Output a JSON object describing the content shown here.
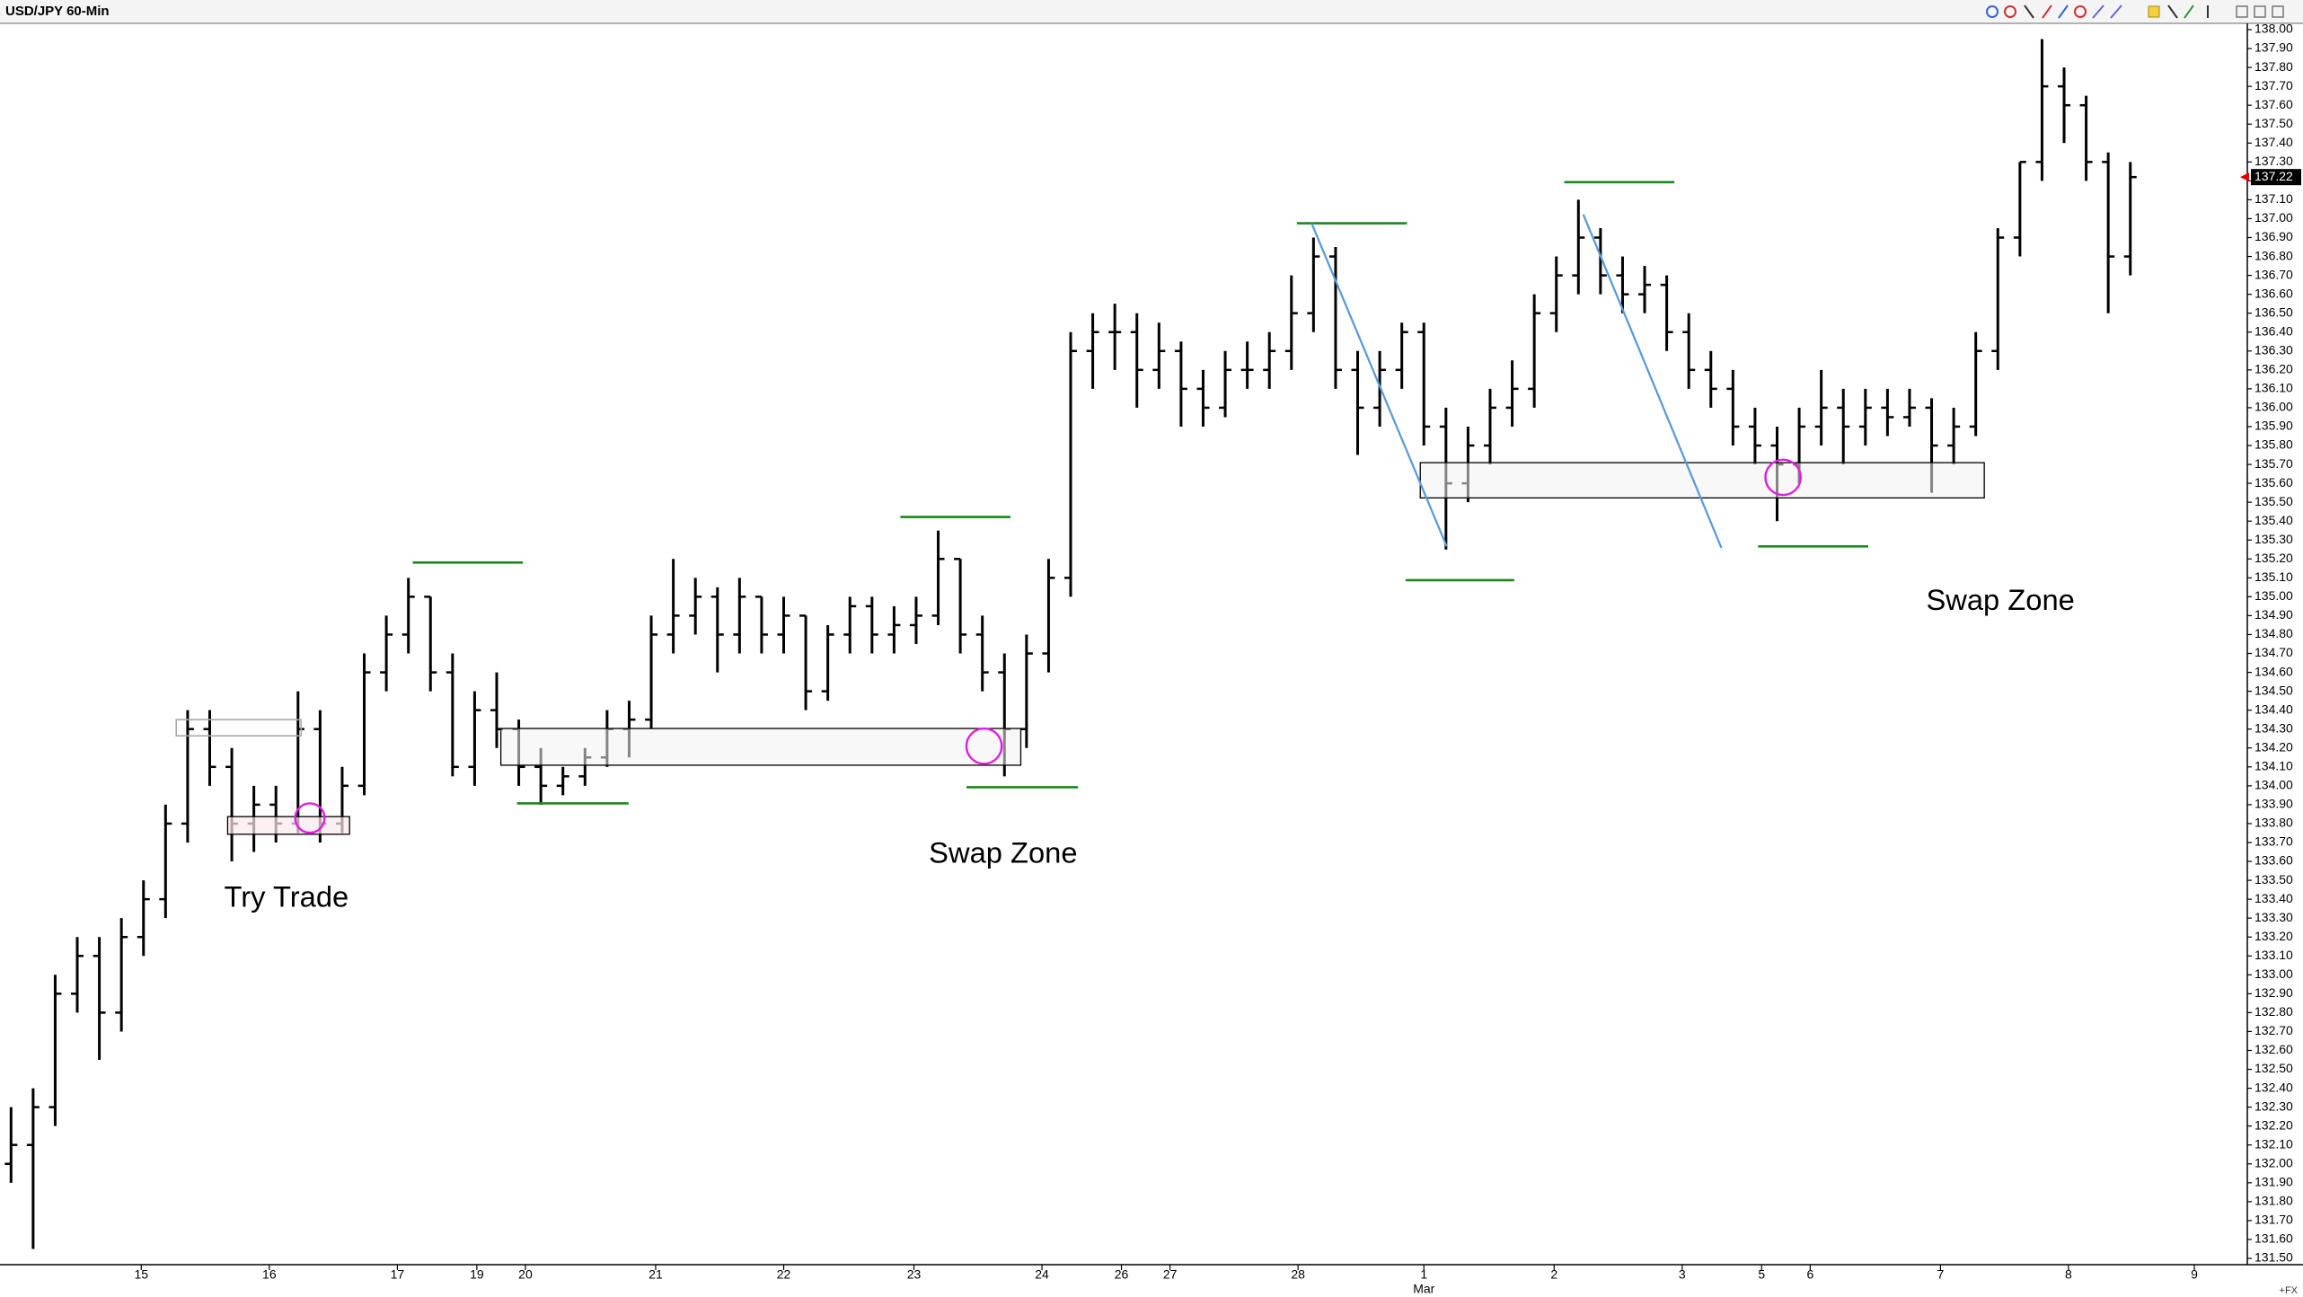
{
  "chart_data": {
    "type": "ohlc",
    "title": "USD/JPY 60-Min",
    "footer_label": "+FX",
    "annotations": [
      "Try Trade",
      "Swap Zone",
      "Swap Zone"
    ],
    "color": "#000000",
    "ylim": [
      131.5,
      138.0
    ],
    "xlim": [
      -0.5,
      101.3
    ],
    "yticks": [
      {
        "value": 131.5,
        "label": "131.50"
      },
      {
        "value": 131.6,
        "label": "131.60"
      },
      {
        "value": 131.7,
        "label": "131.70"
      },
      {
        "value": 131.8,
        "label": "131.80"
      },
      {
        "value": 131.9,
        "label": "131.90"
      },
      {
        "value": 132.0,
        "label": "132.00"
      },
      {
        "value": 132.1,
        "label": "132.10"
      },
      {
        "value": 132.2,
        "label": "132.20"
      },
      {
        "value": 132.3,
        "label": "132.30"
      },
      {
        "value": 132.4,
        "label": "132.40"
      },
      {
        "value": 132.5,
        "label": "132.50"
      },
      {
        "value": 132.6,
        "label": "132.60"
      },
      {
        "value": 132.7,
        "label": "132.70"
      },
      {
        "value": 132.8,
        "label": "132.80"
      },
      {
        "value": 132.9,
        "label": "132.90"
      },
      {
        "value": 133.0,
        "label": "133.00"
      },
      {
        "value": 133.1,
        "label": "133.10"
      },
      {
        "value": 133.2,
        "label": "133.20"
      },
      {
        "value": 133.3,
        "label": "133.30"
      },
      {
        "value": 133.4,
        "label": "133.40"
      },
      {
        "value": 133.5,
        "label": "133.50"
      },
      {
        "value": 133.6,
        "label": "133.60"
      },
      {
        "value": 133.7,
        "label": "133.70"
      },
      {
        "value": 133.8,
        "label": "133.80"
      },
      {
        "value": 133.9,
        "label": "133.90"
      },
      {
        "value": 134.0,
        "label": "134.00"
      },
      {
        "value": 134.1,
        "label": "134.10"
      },
      {
        "value": 134.2,
        "label": "134.20"
      },
      {
        "value": 134.3,
        "label": "134.30"
      },
      {
        "value": 134.4,
        "label": "134.40"
      },
      {
        "value": 134.5,
        "label": "134.50"
      },
      {
        "value": 134.6,
        "label": "134.60"
      },
      {
        "value": 134.7,
        "label": "134.70"
      },
      {
        "value": 134.8,
        "label": "134.80"
      },
      {
        "value": 134.9,
        "label": "134.90"
      },
      {
        "value": 135.0,
        "label": "135.00"
      },
      {
        "value": 135.1,
        "label": "135.10"
      },
      {
        "value": 135.2,
        "label": "135.20"
      },
      {
        "value": 135.3,
        "label": "135.30"
      },
      {
        "value": 135.4,
        "label": "135.40"
      },
      {
        "value": 135.5,
        "label": "135.50"
      },
      {
        "value": 135.6,
        "label": "135.60"
      },
      {
        "value": 135.7,
        "label": "135.70"
      },
      {
        "value": 135.8,
        "label": "135.80"
      },
      {
        "value": 135.9,
        "label": "135.90"
      },
      {
        "value": 136.0,
        "label": "136.00"
      },
      {
        "value": 136.1,
        "label": "136.10"
      },
      {
        "value": 136.2,
        "label": "136.20"
      },
      {
        "value": 136.3,
        "label": "136.30"
      },
      {
        "value": 136.4,
        "label": "136.40"
      },
      {
        "value": 136.5,
        "label": "136.50"
      },
      {
        "value": 136.6,
        "label": "136.60"
      },
      {
        "value": 136.7,
        "label": "136.70"
      },
      {
        "value": 136.8,
        "label": "136.80"
      },
      {
        "value": 136.9,
        "label": "136.90"
      },
      {
        "value": 137.0,
        "label": "137.00"
      },
      {
        "value": 137.1,
        "label": "137.10"
      },
      {
        "value": 137.2,
        "label": "137.20"
      },
      {
        "value": 137.3,
        "label": "137.30"
      },
      {
        "value": 137.4,
        "label": "137.40"
      },
      {
        "value": 137.5,
        "label": "137.50"
      },
      {
        "value": 137.6,
        "label": "137.60"
      },
      {
        "value": 137.7,
        "label": "137.70"
      },
      {
        "value": 137.8,
        "label": "137.80"
      },
      {
        "value": 137.9,
        "label": "137.90"
      },
      {
        "value": 138.0,
        "label": "138.00"
      }
    ],
    "xticks": [
      {
        "value": 5.9,
        "label": "15"
      },
      {
        "value": 11.7,
        "label": "16"
      },
      {
        "value": 17.5,
        "label": "17"
      },
      {
        "value": 21.1,
        "label": "19"
      },
      {
        "value": 23.3,
        "label": "20"
      },
      {
        "value": 29.2,
        "label": "21"
      },
      {
        "value": 35.0,
        "label": "22"
      },
      {
        "value": 40.9,
        "label": "23"
      },
      {
        "value": 46.7,
        "label": "24"
      },
      {
        "value": 50.3,
        "label": "26"
      },
      {
        "value": 52.5,
        "label": "27"
      },
      {
        "value": 58.3,
        "label": "28"
      },
      {
        "value": 64.0,
        "label": "1"
      },
      {
        "value": 69.9,
        "label": "2"
      },
      {
        "value": 75.7,
        "label": "3"
      },
      {
        "value": 79.3,
        "label": "5"
      },
      {
        "value": 81.5,
        "label": "6"
      },
      {
        "value": 87.4,
        "label": "7"
      },
      {
        "value": 93.2,
        "label": "8"
      },
      {
        "value": 98.9,
        "label": "9"
      }
    ],
    "month_labels": [
      {
        "value": 64.0,
        "label": "Mar"
      }
    ],
    "ohlc": [
      [
        132.0,
        132.3,
        131.9,
        132.1
      ],
      [
        132.1,
        132.4,
        131.55,
        132.3
      ],
      [
        132.3,
        133.0,
        132.2,
        132.9
      ],
      [
        132.9,
        133.2,
        132.8,
        133.1
      ],
      [
        133.1,
        133.2,
        132.55,
        132.8
      ],
      [
        132.8,
        133.3,
        132.7,
        133.2
      ],
      [
        133.2,
        133.5,
        133.1,
        133.4
      ],
      [
        133.4,
        133.9,
        133.3,
        133.8
      ],
      [
        133.8,
        134.4,
        133.7,
        134.3
      ],
      [
        134.3,
        134.4,
        134.0,
        134.1
      ],
      [
        134.1,
        134.2,
        133.6,
        133.8
      ],
      [
        133.8,
        134.0,
        133.65,
        133.9
      ],
      [
        133.9,
        134.0,
        133.7,
        133.8
      ],
      [
        133.8,
        134.5,
        133.75,
        134.3
      ],
      [
        134.3,
        134.4,
        133.7,
        133.8
      ],
      [
        133.8,
        134.1,
        133.75,
        134.0
      ],
      [
        134.0,
        134.7,
        133.95,
        134.6
      ],
      [
        134.6,
        134.9,
        134.5,
        134.8
      ],
      [
        134.8,
        135.1,
        134.7,
        135.0
      ],
      [
        135.0,
        135.0,
        134.5,
        134.6
      ],
      [
        134.6,
        134.7,
        134.05,
        134.1
      ],
      [
        134.1,
        134.5,
        134.0,
        134.4
      ],
      [
        134.4,
        134.6,
        134.2,
        134.3
      ],
      [
        134.3,
        134.35,
        134.0,
        134.1
      ],
      [
        134.1,
        134.2,
        133.9,
        134.0
      ],
      [
        134.0,
        134.1,
        133.95,
        134.05
      ],
      [
        134.05,
        134.2,
        134.0,
        134.15
      ],
      [
        134.15,
        134.4,
        134.1,
        134.3
      ],
      [
        134.3,
        134.45,
        134.15,
        134.35
      ],
      [
        134.35,
        134.9,
        134.3,
        134.8
      ],
      [
        134.8,
        135.2,
        134.7,
        134.9
      ],
      [
        134.9,
        135.1,
        134.8,
        135.0
      ],
      [
        135.0,
        135.05,
        134.6,
        134.8
      ],
      [
        134.8,
        135.1,
        134.7,
        135.0
      ],
      [
        135.0,
        135.0,
        134.7,
        134.8
      ],
      [
        134.8,
        135.0,
        134.7,
        134.9
      ],
      [
        134.9,
        134.9,
        134.4,
        134.5
      ],
      [
        134.5,
        134.85,
        134.45,
        134.8
      ],
      [
        134.8,
        135.0,
        134.7,
        134.95
      ],
      [
        134.95,
        135.0,
        134.7,
        134.8
      ],
      [
        134.8,
        134.95,
        134.7,
        134.85
      ],
      [
        134.85,
        135.0,
        134.75,
        134.9
      ],
      [
        134.9,
        135.35,
        134.85,
        135.2
      ],
      [
        135.2,
        135.2,
        134.7,
        134.8
      ],
      [
        134.8,
        134.9,
        134.5,
        134.6
      ],
      [
        134.6,
        134.7,
        134.05,
        134.3
      ],
      [
        134.3,
        134.8,
        134.2,
        134.7
      ],
      [
        134.7,
        135.2,
        134.6,
        135.1
      ],
      [
        135.1,
        136.4,
        135.0,
        136.3
      ],
      [
        136.3,
        136.5,
        136.1,
        136.4
      ],
      [
        136.4,
        136.55,
        136.2,
        136.4
      ],
      [
        136.4,
        136.5,
        136.0,
        136.2
      ],
      [
        136.2,
        136.45,
        136.1,
        136.3
      ],
      [
        136.3,
        136.35,
        135.9,
        136.1
      ],
      [
        136.1,
        136.2,
        135.9,
        136.0
      ],
      [
        136.0,
        136.3,
        135.95,
        136.2
      ],
      [
        136.2,
        136.35,
        136.1,
        136.2
      ],
      [
        136.2,
        136.4,
        136.1,
        136.3
      ],
      [
        136.3,
        136.7,
        136.2,
        136.5
      ],
      [
        136.5,
        136.9,
        136.4,
        136.8
      ],
      [
        136.8,
        136.85,
        136.1,
        136.2
      ],
      [
        136.2,
        136.3,
        135.75,
        136.0
      ],
      [
        136.0,
        136.3,
        135.9,
        136.2
      ],
      [
        136.2,
        136.45,
        136.1,
        136.4
      ],
      [
        136.4,
        136.45,
        135.8,
        135.9
      ],
      [
        135.9,
        136.0,
        135.25,
        135.6
      ],
      [
        135.6,
        135.9,
        135.5,
        135.8
      ],
      [
        135.8,
        136.1,
        135.7,
        136.0
      ],
      [
        136.0,
        136.25,
        135.9,
        136.1
      ],
      [
        136.1,
        136.6,
        136.0,
        136.5
      ],
      [
        136.5,
        136.8,
        136.4,
        136.7
      ],
      [
        136.7,
        137.1,
        136.6,
        136.9
      ],
      [
        136.9,
        136.95,
        136.6,
        136.7
      ],
      [
        136.7,
        136.8,
        136.5,
        136.6
      ],
      [
        136.6,
        136.75,
        136.5,
        136.65
      ],
      [
        136.65,
        136.7,
        136.3,
        136.4
      ],
      [
        136.4,
        136.5,
        136.1,
        136.2
      ],
      [
        136.2,
        136.3,
        136.0,
        136.1
      ],
      [
        136.1,
        136.2,
        135.8,
        135.9
      ],
      [
        135.9,
        136.0,
        135.7,
        135.8
      ],
      [
        135.8,
        135.9,
        135.4,
        135.7
      ],
      [
        135.7,
        136.0,
        135.6,
        135.9
      ],
      [
        135.9,
        136.2,
        135.8,
        136.0
      ],
      [
        136.0,
        136.1,
        135.7,
        135.9
      ],
      [
        135.9,
        136.1,
        135.8,
        136.0
      ],
      [
        136.0,
        136.1,
        135.85,
        135.95
      ],
      [
        135.95,
        136.1,
        135.9,
        136.0
      ],
      [
        136.0,
        136.05,
        135.55,
        135.8
      ],
      [
        135.8,
        136.0,
        135.7,
        135.9
      ],
      [
        135.9,
        136.4,
        135.85,
        136.3
      ],
      [
        136.3,
        136.95,
        136.2,
        136.9
      ],
      [
        136.9,
        137.3,
        136.8,
        137.3
      ],
      [
        137.3,
        137.95,
        137.2,
        137.7
      ],
      [
        137.7,
        137.8,
        137.4,
        137.6
      ],
      [
        137.6,
        137.65,
        137.2,
        137.3
      ],
      [
        137.3,
        137.35,
        136.5,
        136.8
      ],
      [
        136.8,
        137.3,
        136.7,
        137.22
      ]
    ]
  }
}
